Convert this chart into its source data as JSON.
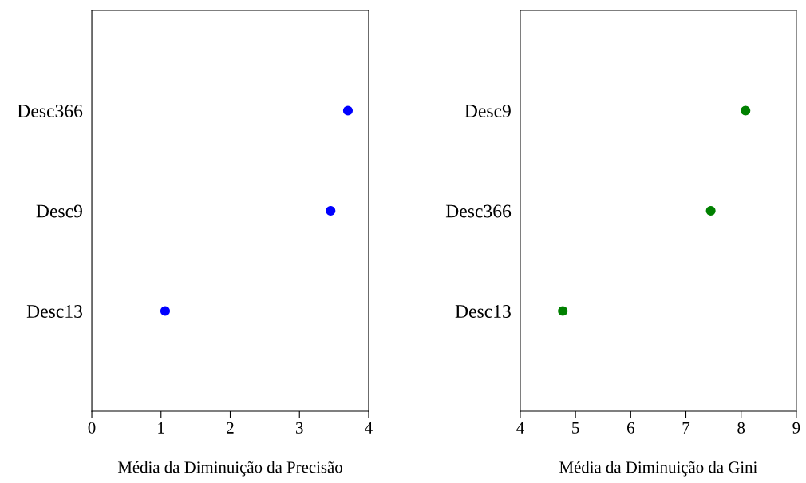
{
  "chart_data": [
    {
      "type": "scatter",
      "orientation": "horizontal",
      "categories": [
        "Desc366",
        "Desc9",
        "Desc13"
      ],
      "xlabel": "Média da Diminuição da Precisão",
      "xlim": [
        0,
        4
      ],
      "xticks": [
        0,
        1,
        2,
        3,
        4
      ],
      "marker": "circle",
      "grid": false,
      "legend": false,
      "series": [
        {
          "color": "#0000ff",
          "values": [
            3.7,
            3.45,
            1.06
          ]
        }
      ]
    },
    {
      "type": "scatter",
      "orientation": "horizontal",
      "categories": [
        "Desc9",
        "Desc366",
        "Desc13"
      ],
      "xlabel": "Média da Diminuição da Gini",
      "xlim": [
        4,
        9
      ],
      "xticks": [
        4,
        5,
        6,
        7,
        8,
        9
      ],
      "marker": "circle",
      "grid": false,
      "legend": false,
      "series": [
        {
          "color": "#008000",
          "values": [
            8.08,
            7.45,
            4.77
          ]
        }
      ]
    }
  ]
}
